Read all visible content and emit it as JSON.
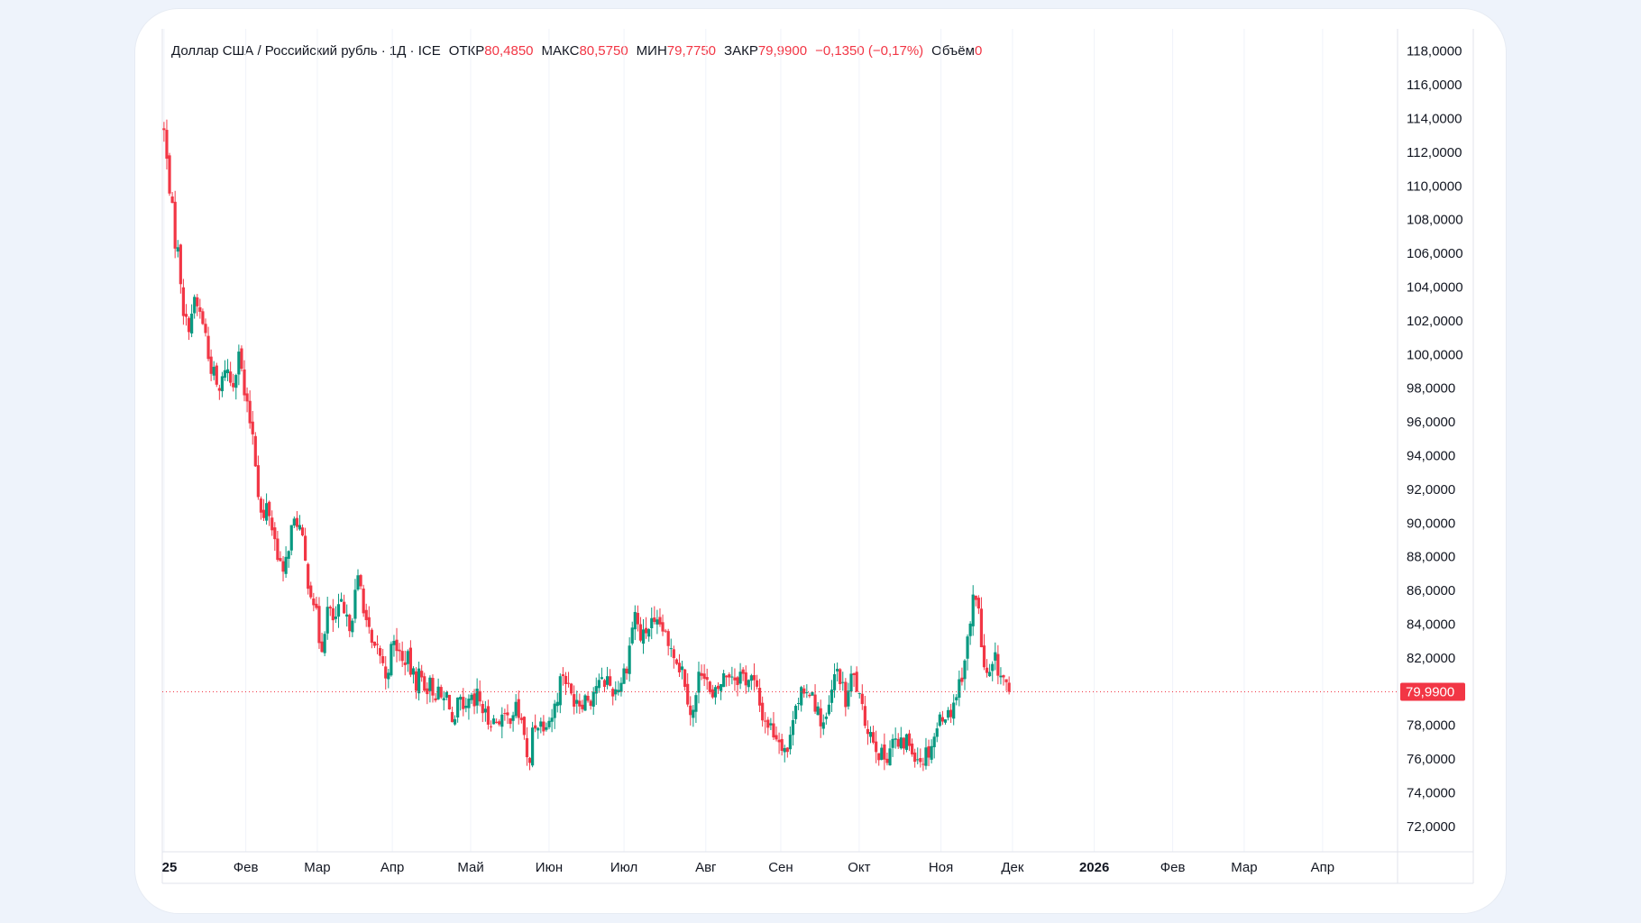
{
  "legend": {
    "symbol": "Доллар США / Российский рубль · 1Д · ICE",
    "open_label": "ОТКР",
    "open_value": "80,4850",
    "high_label": "МАКС",
    "high_value": "80,5750",
    "low_label": "МИН",
    "low_value": "79,7750",
    "close_label": "ЗАКР",
    "close_value": "79,9900",
    "change": "−0,1350 (−0,17%)",
    "volume_label": "Объём",
    "volume_value": "0"
  },
  "colors": {
    "up": "#089981",
    "down": "#f23645",
    "grid": "#f0f3fa",
    "axis": "#e0e3eb",
    "text": "#131722"
  },
  "chart_data": {
    "type": "candlestick",
    "title": "",
    "ylim": [
      70.5,
      119
    ],
    "y_ticks": [
      72,
      74,
      76,
      78,
      80,
      82,
      84,
      86,
      88,
      90,
      92,
      94,
      96,
      98,
      100,
      102,
      104,
      106,
      108,
      110,
      112,
      114,
      116,
      118
    ],
    "y_tick_labels": [
      "72,0000",
      "74,0000",
      "76,0000",
      "78,0000",
      "80,0000",
      "82,0000",
      "84,0000",
      "86,0000",
      "88,0000",
      "90,0000",
      "92,0000",
      "94,0000",
      "96,0000",
      "98,0000",
      "100,0000",
      "102,0000",
      "104,0000",
      "106,0000",
      "108,0000",
      "110,0000",
      "112,0000",
      "114,0000",
      "116,0000",
      "118,0000"
    ],
    "x_axis_labels": [
      {
        "label": "25",
        "bold": true,
        "day_index": 0
      },
      {
        "label": "Фев",
        "bold": false,
        "day_index": 24
      },
      {
        "label": "Мар",
        "bold": false,
        "day_index": 45
      },
      {
        "label": "Апр",
        "bold": false,
        "day_index": 67
      },
      {
        "label": "Май",
        "bold": false,
        "day_index": 90
      },
      {
        "label": "Июн",
        "bold": false,
        "day_index": 113
      },
      {
        "label": "Июл",
        "bold": false,
        "day_index": 135
      },
      {
        "label": "Авг",
        "bold": false,
        "day_index": 159
      },
      {
        "label": "Сен",
        "bold": false,
        "day_index": 181
      },
      {
        "label": "Окт",
        "bold": false,
        "day_index": 204
      },
      {
        "label": "Ноя",
        "bold": false,
        "day_index": 228
      },
      {
        "label": "Дек",
        "bold": false,
        "day_index": 249
      },
      {
        "label": "2026",
        "bold": true,
        "day_index": 273
      },
      {
        "label": "Фев",
        "bold": false,
        "day_index": 296
      },
      {
        "label": "Мар",
        "bold": false,
        "day_index": 317
      },
      {
        "label": "Апр",
        "bold": false,
        "day_index": 340
      }
    ],
    "last_price_label": "79,9900",
    "last_price": 79.99,
    "x_day_range": [
      -0.5,
      362
    ],
    "close_path": [
      [
        0,
        113.2
      ],
      [
        1,
        111.0
      ],
      [
        2,
        109.5
      ],
      [
        3,
        107.0
      ],
      [
        4,
        106.2
      ],
      [
        5,
        104.3
      ],
      [
        6,
        102.0
      ],
      [
        7,
        101.6
      ],
      [
        8,
        102.5
      ],
      [
        9,
        103.0
      ],
      [
        10,
        102.7
      ],
      [
        11,
        102.2
      ],
      [
        12,
        101.5
      ],
      [
        13,
        99.8
      ],
      [
        14,
        99.2
      ],
      [
        15,
        98.5
      ],
      [
        16,
        97.5
      ],
      [
        17,
        98.3
      ],
      [
        18,
        99.5
      ],
      [
        19,
        98.8
      ],
      [
        20,
        98.0
      ],
      [
        21,
        99.2
      ],
      [
        22,
        100.5
      ],
      [
        23,
        98.4
      ],
      [
        24,
        97.0
      ],
      [
        25,
        96.2
      ],
      [
        26,
        95.5
      ],
      [
        27,
        93.4
      ],
      [
        28,
        91.2
      ],
      [
        29,
        89.8
      ],
      [
        30,
        91.0
      ],
      [
        31,
        90.6
      ],
      [
        32,
        89.4
      ],
      [
        33,
        88.6
      ],
      [
        34,
        87.8
      ],
      [
        35,
        86.6
      ],
      [
        36,
        88.0
      ],
      [
        37,
        89.4
      ],
      [
        38,
        89.8
      ],
      [
        39,
        90.2
      ],
      [
        40,
        89.6
      ],
      [
        41,
        88.2
      ],
      [
        42,
        86.8
      ],
      [
        43,
        86.2
      ],
      [
        44,
        85.4
      ],
      [
        45,
        84.0
      ],
      [
        46,
        82.4
      ],
      [
        47,
        83.7
      ],
      [
        48,
        84.9
      ],
      [
        49,
        84.4
      ],
      [
        50,
        84.1
      ],
      [
        51,
        84.6
      ],
      [
        52,
        85.0
      ],
      [
        53,
        84.3
      ],
      [
        54,
        83.9
      ],
      [
        55,
        84.4
      ],
      [
        56,
        85.6
      ],
      [
        57,
        86.6
      ],
      [
        58,
        86.0
      ],
      [
        59,
        84.6
      ],
      [
        60,
        83.5
      ],
      [
        61,
        82.6
      ],
      [
        62,
        82.1
      ],
      [
        63,
        82.7
      ],
      [
        64,
        81.6
      ],
      [
        65,
        81.0
      ],
      [
        66,
        81.7
      ],
      [
        67,
        82.7
      ],
      [
        68,
        82.9
      ],
      [
        69,
        82.3
      ],
      [
        70,
        81.6
      ],
      [
        71,
        82.2
      ],
      [
        72,
        81.5
      ],
      [
        73,
        80.9
      ],
      [
        74,
        80.6
      ],
      [
        75,
        81.1
      ],
      [
        76,
        80.6
      ],
      [
        77,
        80.3
      ],
      [
        78,
        80.4
      ],
      [
        79,
        80.1
      ],
      [
        80,
        79.9
      ],
      [
        81,
        79.6
      ],
      [
        82,
        79.4
      ],
      [
        83,
        79.8
      ],
      [
        84,
        79.3
      ],
      [
        85,
        77.2
      ],
      [
        86,
        79.0
      ],
      [
        87,
        79.3
      ],
      [
        88,
        78.2
      ],
      [
        89,
        79.1
      ],
      [
        90,
        79.4
      ],
      [
        91,
        79.0
      ],
      [
        92,
        79.8
      ],
      [
        93,
        79.3
      ],
      [
        94,
        78.6
      ],
      [
        95,
        78.3
      ],
      [
        96,
        78.5
      ],
      [
        97,
        78.1
      ],
      [
        98,
        78.4
      ],
      [
        99,
        78.6
      ],
      [
        100,
        78.2
      ],
      [
        101,
        78.4
      ],
      [
        102,
        78.8
      ],
      [
        103,
        79.0
      ],
      [
        104,
        78.7
      ],
      [
        105,
        78.1
      ],
      [
        106,
        77.4
      ],
      [
        107,
        74.3
      ],
      [
        108,
        77.9
      ],
      [
        109,
        78.1
      ],
      [
        110,
        78.3
      ],
      [
        111,
        78.0
      ],
      [
        112,
        78.5
      ],
      [
        113,
        78.4
      ],
      [
        114,
        78.7
      ],
      [
        115,
        79.3
      ],
      [
        116,
        80.5
      ],
      [
        117,
        81.2
      ],
      [
        118,
        80.7
      ],
      [
        119,
        79.9
      ],
      [
        120,
        79.6
      ],
      [
        121,
        79.8
      ],
      [
        122,
        79.4
      ],
      [
        123,
        79.6
      ],
      [
        124,
        79.8
      ],
      [
        125,
        79.5
      ],
      [
        126,
        80.1
      ],
      [
        127,
        80.5
      ],
      [
        128,
        80.3
      ],
      [
        129,
        80.6
      ],
      [
        130,
        80.8
      ],
      [
        131,
        80.3
      ],
      [
        132,
        80.0
      ],
      [
        133,
        80.3
      ],
      [
        134,
        80.6
      ],
      [
        135,
        81.2
      ],
      [
        136,
        81.8
      ],
      [
        137,
        83.3
      ],
      [
        138,
        84.8
      ],
      [
        139,
        84.0
      ],
      [
        140,
        83.0
      ],
      [
        141,
        83.4
      ],
      [
        142,
        83.8
      ],
      [
        143,
        84.0
      ],
      [
        144,
        83.6
      ],
      [
        145,
        83.8
      ],
      [
        146,
        84.0
      ],
      [
        147,
        83.2
      ],
      [
        148,
        82.5
      ],
      [
        149,
        82.9
      ],
      [
        150,
        82.2
      ],
      [
        151,
        81.6
      ],
      [
        152,
        81.4
      ],
      [
        153,
        80.6
      ],
      [
        154,
        79.4
      ],
      [
        155,
        78.4
      ],
      [
        156,
        79.6
      ],
      [
        157,
        80.9
      ],
      [
        158,
        81.5
      ],
      [
        159,
        81.2
      ],
      [
        160,
        79.8
      ],
      [
        161,
        79.4
      ],
      [
        162,
        79.9
      ],
      [
        163,
        80.3
      ],
      [
        164,
        80.8
      ],
      [
        165,
        81.0
      ],
      [
        166,
        81.2
      ],
      [
        167,
        81.0
      ],
      [
        168,
        80.8
      ],
      [
        169,
        81.1
      ],
      [
        170,
        80.9
      ],
      [
        171,
        80.7
      ],
      [
        172,
        80.9
      ],
      [
        173,
        80.5
      ],
      [
        174,
        79.9
      ],
      [
        175,
        79.0
      ],
      [
        176,
        78.4
      ],
      [
        177,
        78.2
      ],
      [
        178,
        77.9
      ],
      [
        179,
        77.6
      ],
      [
        180,
        77.4
      ],
      [
        181,
        77.1
      ],
      [
        182,
        76.8
      ],
      [
        183,
        76.5
      ],
      [
        184,
        77.3
      ],
      [
        185,
        79.8
      ],
      [
        186,
        79.4
      ],
      [
        187,
        80.0
      ],
      [
        188,
        79.2
      ],
      [
        189,
        80.0
      ],
      [
        190,
        80.4
      ],
      [
        191,
        79.4
      ],
      [
        192,
        78.6
      ],
      [
        193,
        78.3
      ],
      [
        194,
        77.9
      ],
      [
        195,
        78.8
      ],
      [
        196,
        80.0
      ],
      [
        197,
        80.9
      ],
      [
        198,
        81.4
      ],
      [
        199,
        80.2
      ],
      [
        200,
        79.3
      ],
      [
        201,
        80.1
      ],
      [
        202,
        81.0
      ],
      [
        203,
        80.6
      ],
      [
        204,
        79.5
      ],
      [
        205,
        78.6
      ],
      [
        206,
        78.2
      ],
      [
        207,
        77.7
      ],
      [
        208,
        77.4
      ],
      [
        209,
        76.9
      ],
      [
        210,
        76.3
      ],
      [
        211,
        76.0
      ],
      [
        212,
        76.2
      ],
      [
        213,
        76.8
      ],
      [
        214,
        77.2
      ],
      [
        215,
        76.8
      ],
      [
        216,
        76.6
      ],
      [
        217,
        76.9
      ],
      [
        218,
        77.2
      ],
      [
        219,
        76.7
      ],
      [
        220,
        76.5
      ],
      [
        221,
        76.3
      ],
      [
        222,
        76.0
      ],
      [
        223,
        76.2
      ],
      [
        224,
        76.5
      ],
      [
        225,
        76.8
      ],
      [
        226,
        77.4
      ],
      [
        227,
        77.9
      ],
      [
        228,
        78.6
      ],
      [
        229,
        78.9
      ],
      [
        230,
        78.5
      ],
      [
        231,
        79.0
      ],
      [
        232,
        79.6
      ],
      [
        233,
        80.2
      ],
      [
        234,
        81.0
      ],
      [
        235,
        82.0
      ],
      [
        236,
        83.2
      ],
      [
        237,
        84.6
      ],
      [
        238,
        86.3
      ],
      [
        239,
        84.8
      ],
      [
        240,
        82.4
      ],
      [
        241,
        81.0
      ],
      [
        242,
        80.6
      ],
      [
        243,
        81.3
      ],
      [
        244,
        81.8
      ],
      [
        245,
        81.2
      ],
      [
        246,
        80.8
      ],
      [
        247,
        80.5
      ],
      [
        248,
        80.0
      ]
    ]
  }
}
